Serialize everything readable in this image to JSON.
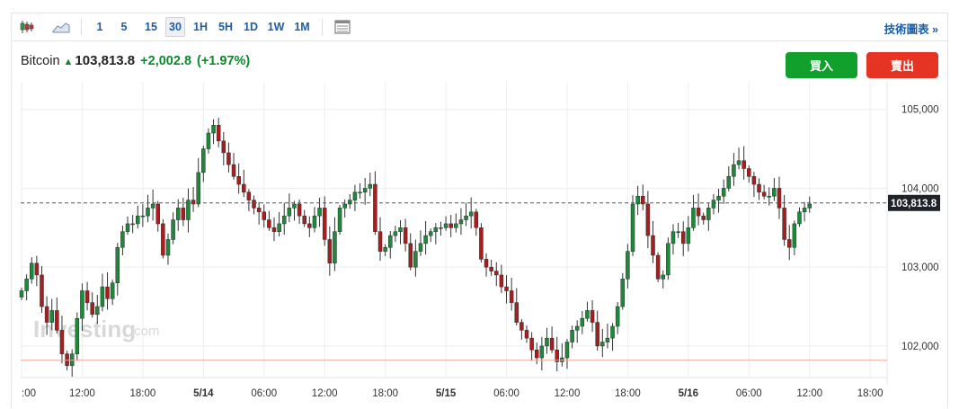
{
  "toolbar": {
    "chart_type_icon": "candlestick-icon",
    "area_icon": "area-chart-icon",
    "intervals": [
      "1",
      "5",
      "15",
      "30",
      "1H",
      "5H",
      "1D",
      "1W",
      "1M"
    ],
    "active_interval": "30",
    "settings_icon": "table-icon",
    "tech_link": "技術圖表 »"
  },
  "quote": {
    "name": "Bitcoin",
    "arrow": "▲",
    "price": "103,813.8",
    "change": "+2,002.8",
    "change_pct": "(+1.97%)"
  },
  "buttons": {
    "buy": "買入",
    "sell": "賣出"
  },
  "watermark": {
    "main": "Investing",
    "suffix": ".com"
  },
  "colors": {
    "up": "#1d8a3a",
    "down": "#a81e1e",
    "accent": "#1b5fa8",
    "buy": "#12a02c",
    "sell": "#e53324"
  },
  "chart_data": {
    "type": "candlestick",
    "instrument": "Bitcoin",
    "interval": "30",
    "ylim": [
      101600,
      105350
    ],
    "y_ticks": [
      102000,
      103000,
      104000,
      105000
    ],
    "y_tick_labels": [
      "102,000",
      "103,000",
      "104,000",
      "105,000"
    ],
    "x_tick_labels": [
      ":00",
      "12:00",
      "18:00",
      "5/14",
      "06:00",
      "12:00",
      "18:00",
      "5/15",
      "06:00",
      "12:00",
      "18:00",
      "5/16",
      "06:00",
      "12:00",
      "18:00"
    ],
    "x_tick_index": [
      0,
      12,
      24,
      36,
      48,
      60,
      72,
      84,
      96,
      108,
      120,
      132,
      144,
      156,
      168
    ],
    "current_price": 103813.8,
    "current_price_label": "103,813.8",
    "reference_line": 101820,
    "grid": true,
    "closes": [
      102700,
      102850,
      103050,
      102900,
      102500,
      102300,
      102450,
      102200,
      101900,
      101750,
      101900,
      102350,
      102700,
      102550,
      102400,
      102500,
      102750,
      102600,
      102800,
      103250,
      103450,
      103550,
      103550,
      103650,
      103650,
      103750,
      103800,
      103550,
      103150,
      103350,
      103600,
      103750,
      103600,
      103850,
      103800,
      104200,
      104500,
      104700,
      104800,
      104600,
      104450,
      104300,
      104150,
      104050,
      103950,
      103850,
      103750,
      103700,
      103600,
      103500,
      103450,
      103550,
      103650,
      103750,
      103800,
      103650,
      103550,
      103500,
      103650,
      103750,
      103350,
      103050,
      103450,
      103750,
      103800,
      103850,
      103950,
      103950,
      104000,
      104050,
      103450,
      103200,
      103250,
      103400,
      103450,
      103500,
      103300,
      103000,
      103200,
      103300,
      103400,
      103450,
      103500,
      103500,
      103550,
      103500,
      103550,
      103600,
      103650,
      103700,
      103500,
      103100,
      103000,
      102950,
      102900,
      102750,
      102700,
      102550,
      102300,
      102200,
      102100,
      101950,
      101850,
      102000,
      102100,
      101950,
      101800,
      101850,
      102050,
      102200,
      102250,
      102350,
      102450,
      102300,
      102000,
      102050,
      102100,
      102250,
      102500,
      102850,
      103200,
      103800,
      103900,
      103800,
      103400,
      103150,
      102850,
      102900,
      103300,
      103450,
      103450,
      103300,
      103500,
      103750,
      103650,
      103600,
      103750,
      103850,
      103900,
      104000,
      104150,
      104300,
      104350,
      104250,
      104150,
      104050,
      103950,
      103900,
      103900,
      104000,
      103750,
      103350,
      103250,
      103550,
      103700,
      103750,
      103800
    ]
  }
}
